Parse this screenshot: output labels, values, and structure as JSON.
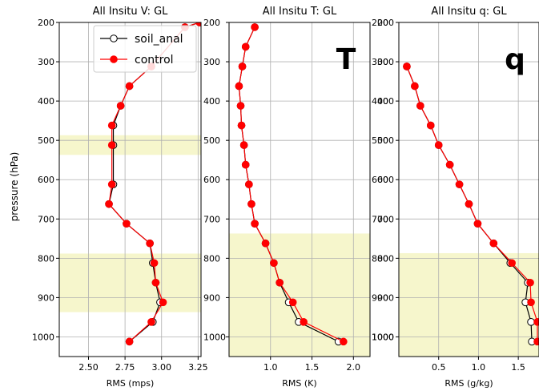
{
  "figure": {
    "ylabel": "pressure (hPa)",
    "legend": {
      "placement": "upper-right of first panel",
      "entries": [
        "soil_anal",
        "control"
      ]
    }
  },
  "colors": {
    "soil_anal": "#000000",
    "control": "#ff0000",
    "shade": "#f6f6cc",
    "grid": "#b0b0b0",
    "marker_fill_soil": "#ffffff"
  },
  "chart_data": [
    {
      "type": "line",
      "title": "All Insitu V: GL",
      "xlabel": "RMS (mps)",
      "panel_label": "",
      "xlim": [
        2.3,
        3.27
      ],
      "ylim": [
        1050,
        200
      ],
      "xticks": [
        2.5,
        2.75,
        3.0,
        3.25
      ],
      "xtick_labels": [
        "2.50",
        "2.75",
        "3.00",
        "3.25"
      ],
      "yticks": [
        200,
        300,
        400,
        500,
        600,
        700,
        800,
        900,
        1000
      ],
      "ytick_labels": [
        "200",
        "300",
        "400",
        "500",
        "600",
        "700",
        "800",
        "900",
        "1000"
      ],
      "grid": true,
      "shaded_ranges": [
        [
          487,
          537
        ],
        [
          788,
          937
        ]
      ],
      "y": [
        200,
        212,
        312,
        362,
        412,
        462,
        512,
        612,
        662,
        712,
        762,
        812,
        862,
        912,
        962,
        1012
      ],
      "series": [
        {
          "name": "soil_anal",
          "marker": "open-circle",
          "values": [
            3.26,
            3.16,
            2.93,
            2.78,
            2.72,
            2.67,
            2.67,
            2.67,
            2.64,
            2.76,
            2.92,
            2.94,
            2.96,
            2.99,
            2.94,
            2.78
          ]
        },
        {
          "name": "control",
          "marker": "filled-circle",
          "values": [
            3.26,
            3.16,
            2.93,
            2.78,
            2.72,
            2.66,
            2.66,
            2.66,
            2.64,
            2.76,
            2.92,
            2.95,
            2.96,
            3.01,
            2.93,
            2.78
          ]
        }
      ]
    },
    {
      "type": "line",
      "title": "All Insitu T: GL",
      "xlabel": "RMS (K)",
      "panel_label": "T",
      "xlim": [
        0.5,
        2.2
      ],
      "ylim": [
        1050,
        200
      ],
      "xticks": [
        1.0,
        1.5,
        2.0
      ],
      "xtick_labels": [
        "1.0",
        "1.5",
        "2.0"
      ],
      "yticks": [],
      "ytick_labels": [],
      "grid": true,
      "shaded_ranges": [
        [
          737,
          1050
        ]
      ],
      "y": [
        212,
        262,
        312,
        362,
        412,
        462,
        512,
        562,
        612,
        662,
        712,
        762,
        812,
        862,
        912,
        962,
        1012
      ],
      "series": [
        {
          "name": "soil_anal",
          "marker": "open-circle",
          "values": [
            0.81,
            0.7,
            0.66,
            0.62,
            0.64,
            0.65,
            0.68,
            0.7,
            0.74,
            0.77,
            0.81,
            0.94,
            1.04,
            1.11,
            1.22,
            1.34,
            1.82
          ]
        },
        {
          "name": "control",
          "marker": "filled-circle",
          "values": [
            0.81,
            0.7,
            0.66,
            0.62,
            0.64,
            0.65,
            0.68,
            0.7,
            0.74,
            0.77,
            0.81,
            0.94,
            1.04,
            1.11,
            1.27,
            1.4,
            1.88
          ]
        }
      ]
    },
    {
      "type": "line",
      "title": "All Insitu q: GL",
      "xlabel": "RMS (g/kg)",
      "panel_label": "q",
      "xlim": [
        0.0,
        1.76
      ],
      "ylim": [
        1050,
        200
      ],
      "xticks": [
        0.5,
        1.0,
        1.5
      ],
      "xtick_labels": [
        "0.5",
        "1.0",
        "1.5"
      ],
      "yticks": [
        200,
        300,
        400,
        500,
        600,
        700,
        800,
        900,
        1000
      ],
      "ytick_labels": [
        "200",
        "300",
        "400",
        "500",
        "600",
        "700",
        "800",
        "900",
        "1000"
      ],
      "grid": true,
      "shaded_ranges": [
        [
          787,
          1050
        ]
      ],
      "y": [
        312,
        362,
        412,
        462,
        512,
        562,
        612,
        662,
        712,
        762,
        812,
        862,
        912,
        962,
        1012
      ],
      "series": [
        {
          "name": "soil_anal",
          "marker": "open-circle",
          "values": [
            0.1,
            0.2,
            0.27,
            0.4,
            0.5,
            0.64,
            0.76,
            0.88,
            0.99,
            1.19,
            1.4,
            1.62,
            1.59,
            1.66,
            1.67
          ]
        },
        {
          "name": "control",
          "marker": "filled-circle",
          "values": [
            0.1,
            0.2,
            0.27,
            0.4,
            0.5,
            0.64,
            0.76,
            0.88,
            0.99,
            1.19,
            1.42,
            1.65,
            1.66,
            1.74,
            1.74
          ]
        }
      ]
    }
  ]
}
